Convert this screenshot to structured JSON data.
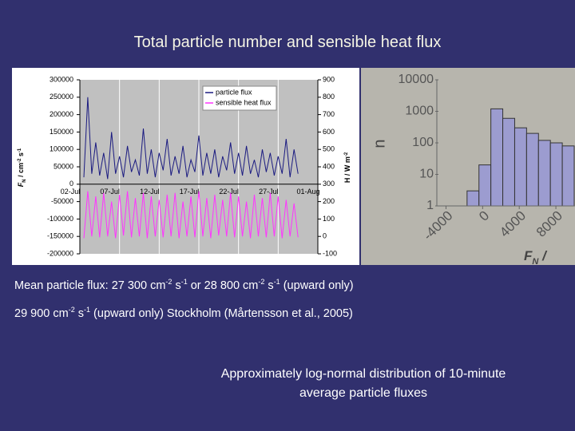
{
  "slide": {
    "title": "Total particle number and sensible heat flux",
    "notes": [
      [
        "Mean particle flux: 27 300 cm",
        "-2",
        " s",
        "-1",
        " or 28 800 cm",
        "-2",
        " s",
        "-1",
        " (upward only)"
      ],
      [
        "29 900 cm",
        "-2",
        " s",
        "-1",
        " (upward only) Stockholm (Mårtensson et al., 2005)"
      ]
    ],
    "caption": [
      "Approximately log-normal distribution of 10-minute",
      "average particle fluxes"
    ]
  },
  "chart_data": [
    {
      "type": "line",
      "ylabel": [
        "F",
        "N",
        " / cm",
        "-2",
        " s",
        "-1"
      ],
      "y2label": [
        "H / W m",
        "-2"
      ],
      "x": [
        0.5,
        1,
        1.5,
        2,
        2.5,
        3,
        3.5,
        4,
        4.5,
        5,
        5.5,
        6,
        6.5,
        7,
        7.5,
        8,
        8.5,
        9,
        9.5,
        10,
        10.5,
        11,
        11.5,
        12,
        12.5,
        13,
        13.5,
        14,
        14.5,
        15,
        15.5,
        16,
        16.5,
        17,
        17.5,
        18,
        18.5,
        19,
        19.5,
        20,
        20.5,
        21,
        21.5,
        22,
        22.5,
        23,
        23.5,
        24,
        24.5,
        25,
        25.5,
        26,
        26.5,
        27,
        27.5
      ],
      "series": [
        {
          "name": "particle flux",
          "color": "#1a1a80",
          "values": [
            20000,
            250000,
            30000,
            120000,
            25000,
            90000,
            15000,
            150000,
            30000,
            80000,
            20000,
            110000,
            35000,
            70000,
            25000,
            160000,
            30000,
            100000,
            20000,
            90000,
            40000,
            130000,
            25000,
            80000,
            30000,
            110000,
            20000,
            70000,
            35000,
            140000,
            25000,
            90000,
            30000,
            100000,
            20000,
            80000,
            40000,
            120000,
            30000,
            90000,
            25000,
            110000,
            30000,
            70000,
            20000,
            100000,
            35000,
            90000,
            25000,
            80000,
            30000,
            130000,
            20000,
            100000,
            30000
          ]
        },
        {
          "name": "sensible heat flux",
          "color": "#ff33ff",
          "axis": "y2",
          "values": [
            -10,
            260,
            0,
            230,
            -5,
            250,
            0,
            200,
            -10,
            240,
            5,
            260,
            -5,
            220,
            0,
            250,
            -10,
            230,
            0,
            210,
            -5,
            240,
            0,
            250,
            -10,
            200,
            0,
            230,
            -5,
            260,
            0,
            220,
            -10,
            240,
            5,
            210,
            0,
            250,
            -5,
            230,
            0,
            200,
            -10,
            240,
            0,
            220,
            -5,
            250,
            0,
            230,
            -10,
            210,
            0,
            190,
            -5
          ]
        }
      ],
      "xlim": [
        0,
        30
      ],
      "xticks": [
        {
          "value": 0,
          "label": "02-Jul"
        },
        {
          "value": 5,
          "label": "07-Jul"
        },
        {
          "value": 10,
          "label": "12-Jul"
        },
        {
          "value": 15,
          "label": "17-Jul"
        },
        {
          "value": 20,
          "label": "22-Jul"
        },
        {
          "value": 25,
          "label": "27-Jul"
        },
        {
          "value": 30,
          "label": "01-Aug"
        }
      ],
      "ylim": [
        -200000,
        300000
      ],
      "yticks": [
        300000,
        250000,
        200000,
        150000,
        100000,
        50000,
        0,
        -50000,
        -100000,
        -150000,
        -200000
      ],
      "y2lim": [
        -100,
        900
      ],
      "y2ticks": [
        900,
        800,
        700,
        600,
        500,
        400,
        300,
        200,
        100,
        0,
        -100
      ],
      "grid": "x",
      "legend": "upper right"
    },
    {
      "type": "histogram",
      "ylabel": "n",
      "xlabel": [
        "F",
        "N",
        " /"
      ],
      "bins": [
        -1700,
        -400,
        900,
        2200,
        3500,
        4800,
        6100,
        7400,
        8700,
        10000
      ],
      "values": [
        3,
        20,
        1200,
        600,
        300,
        200,
        120,
        100,
        80
      ],
      "color": "#9c9cd0",
      "log_y": true,
      "xlim": [
        -5000,
        10000
      ],
      "xticks": [
        -4000,
        0,
        4000,
        8000
      ],
      "ylim": [
        1,
        10000
      ],
      "yticks": [
        10000,
        1000,
        100,
        10,
        1
      ]
    }
  ]
}
